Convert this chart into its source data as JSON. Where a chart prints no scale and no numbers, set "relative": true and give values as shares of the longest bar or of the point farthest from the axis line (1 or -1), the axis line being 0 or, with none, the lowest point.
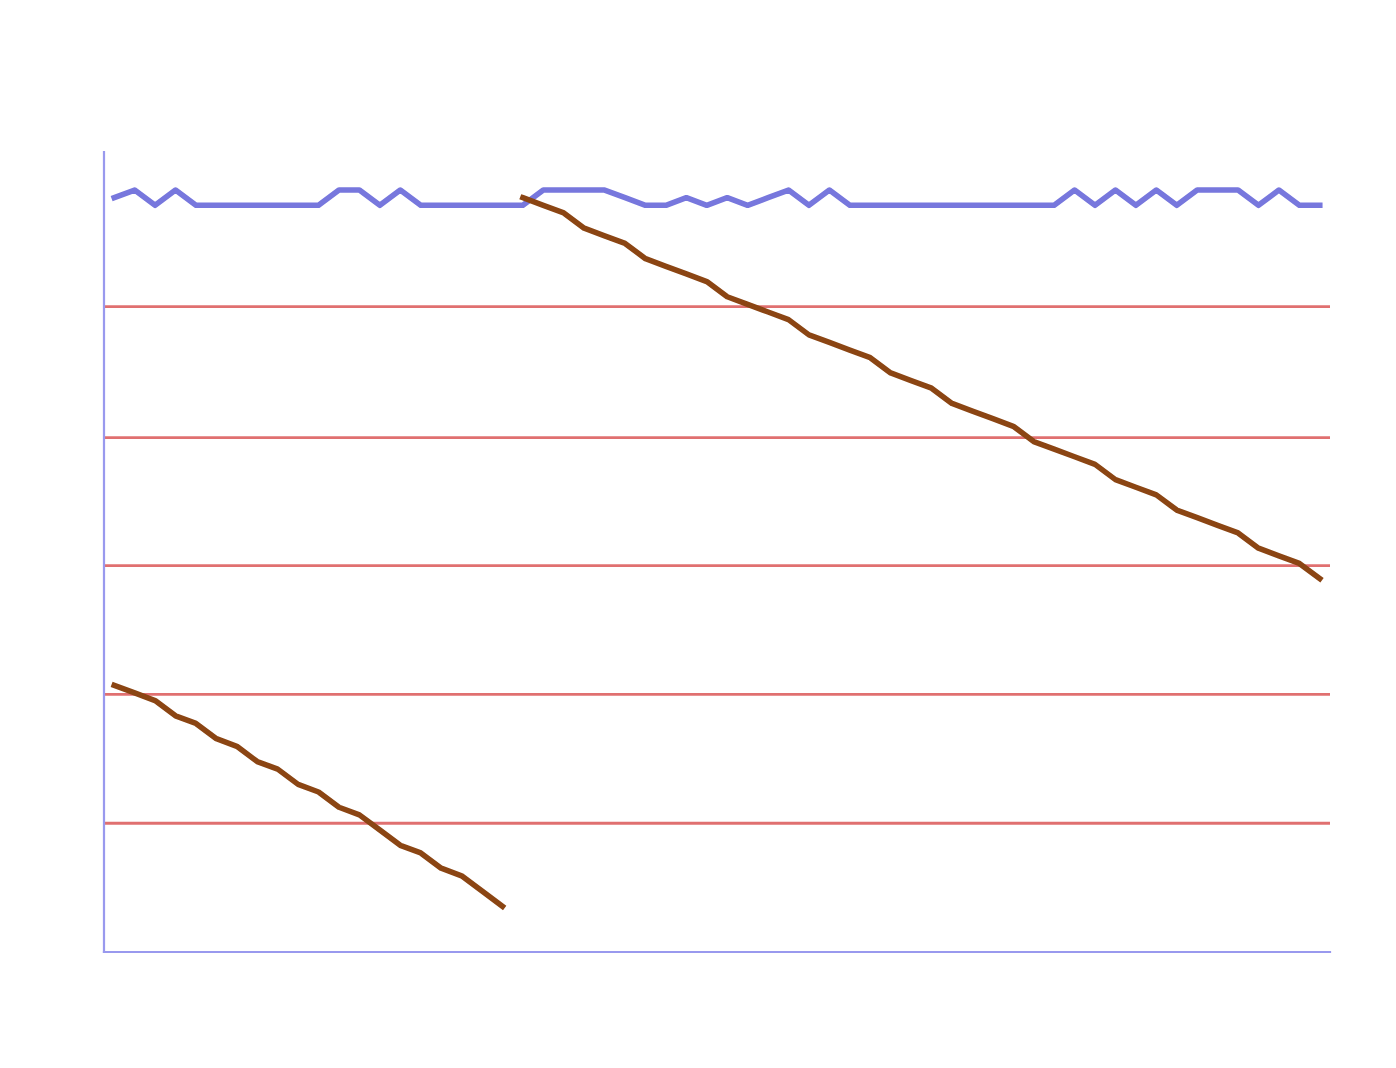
{
  "chart_data": {
    "type": "line",
    "relative": true,
    "legend": false,
    "ref_lines": [
      {
        "axis": "y",
        "value": 0.169,
        "color": "#e07070"
      },
      {
        "axis": "y",
        "value": 0.338,
        "color": "#e07070"
      },
      {
        "axis": "y",
        "value": 0.507,
        "color": "#e07070"
      },
      {
        "axis": "y",
        "value": 0.675,
        "color": "#e07070"
      },
      {
        "axis": "y",
        "value": 0.847,
        "color": "#e07070"
      }
    ],
    "categories": [
      null,
      null,
      null,
      null,
      null,
      null,
      null,
      null,
      null,
      null,
      null,
      null,
      null,
      null,
      null,
      null,
      null,
      null,
      null,
      null,
      null,
      null,
      null,
      null,
      null,
      null,
      null,
      null,
      null,
      null,
      null,
      null,
      null,
      null,
      null,
      null,
      null,
      null,
      null,
      null,
      null,
      null,
      null,
      null,
      null,
      null,
      null,
      null,
      null,
      null,
      null,
      null,
      null,
      null,
      null,
      null,
      null,
      null,
      null,
      null
    ],
    "series": [
      {
        "color": "#7777dd",
        "values": [
          0.99,
          1.0,
          0.98,
          1.0,
          0.98,
          0.98,
          0.98,
          0.98,
          0.98,
          0.98,
          0.98,
          1.0,
          1.0,
          0.98,
          1.0,
          0.98,
          0.98,
          0.98,
          0.98,
          0.98,
          0.98,
          1.0,
          1.0,
          1.0,
          1.0,
          0.99,
          0.98,
          0.98,
          0.99,
          0.98,
          0.99,
          0.98,
          0.99,
          1.0,
          0.98,
          1.0,
          0.98,
          0.98,
          0.98,
          0.98,
          0.98,
          0.98,
          0.98,
          0.98,
          0.98,
          0.98,
          0.98,
          1.0,
          0.98,
          1.0,
          0.98,
          1.0,
          0.98,
          1.0,
          1.0,
          1.0,
          0.98,
          1.0,
          0.98,
          0.98
        ]
      },
      {
        "color": "#8b4513",
        "values": [
          0.35,
          0.34,
          0.33,
          0.31,
          0.3,
          0.28,
          0.27,
          0.25,
          0.24,
          0.22,
          0.21,
          0.19,
          0.18,
          0.16,
          0.14,
          0.13,
          0.11,
          0.1,
          0.08,
          0.06,
          null,
          null,
          null,
          null,
          null,
          null,
          null,
          null,
          null,
          null,
          null,
          null,
          null,
          null,
          null,
          null,
          null,
          null,
          null,
          null,
          null,
          null,
          null,
          null,
          null,
          null,
          null,
          null,
          null,
          null,
          null,
          null,
          null,
          null,
          null,
          null,
          null,
          null,
          null,
          null
        ]
      },
      {
        "color": "#8b4513",
        "values": [
          null,
          null,
          null,
          null,
          null,
          null,
          null,
          null,
          null,
          null,
          null,
          null,
          null,
          null,
          null,
          null,
          null,
          null,
          null,
          null,
          0.99,
          0.98,
          0.97,
          0.95,
          0.94,
          0.93,
          0.91,
          0.9,
          0.89,
          0.88,
          0.86,
          0.85,
          0.84,
          0.83,
          0.81,
          0.8,
          0.79,
          0.78,
          0.76,
          0.75,
          0.74,
          0.72,
          0.71,
          0.7,
          0.69,
          0.67,
          0.66,
          0.65,
          0.64,
          0.62,
          0.61,
          0.6,
          0.58,
          0.57,
          0.56,
          0.55,
          0.53,
          0.52,
          0.51,
          0.49
        ]
      }
    ]
  }
}
